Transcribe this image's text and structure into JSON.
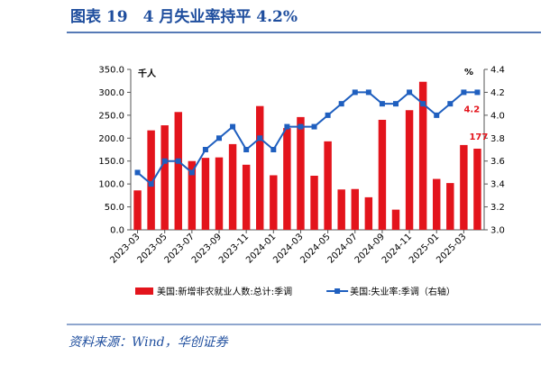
{
  "chart_data": {
    "type": "bar",
    "title": "图表 19　4 月失业率持平 4.2%",
    "source": "资料来源：Wind，华创证券",
    "ylabel": "千人",
    "y2label": "%",
    "categories": [
      "2023-03",
      null,
      "2023-05",
      null,
      "2023-07",
      null,
      "2023-09",
      null,
      "2023-11",
      null,
      "2024-01",
      null,
      "2024-03",
      null,
      "2024-05",
      null,
      "2024-07",
      null,
      "2024-09",
      null,
      "2024-11",
      null,
      "2025-01",
      null,
      "2025-03",
      null
    ],
    "series": [
      {
        "name": "美国:新增非农就业人数:总计:季调",
        "type": "bar",
        "color": "#e3141c",
        "values": [
          86,
          217,
          228,
          257,
          150,
          157,
          158,
          187,
          142,
          270,
          119,
          222,
          246,
          118,
          193,
          88,
          89,
          71,
          240,
          44,
          261,
          323,
          111,
          102,
          185,
          177
        ],
        "value_labels": [
          null,
          null,
          null,
          null,
          null,
          null,
          null,
          null,
          null,
          null,
          null,
          null,
          null,
          null,
          null,
          null,
          null,
          null,
          null,
          null,
          null,
          null,
          null,
          null,
          null,
          "177"
        ]
      },
      {
        "name": "美国:失业率:季调（右轴）",
        "type": "line",
        "axis": "y2",
        "color": "#1f5fbf",
        "values": [
          3.5,
          3.4,
          3.6,
          3.6,
          3.5,
          3.7,
          3.8,
          3.9,
          3.7,
          3.8,
          3.7,
          3.9,
          3.9,
          3.9,
          4.0,
          4.1,
          4.2,
          4.2,
          4.1,
          4.1,
          4.2,
          4.1,
          4.0,
          4.1,
          4.2,
          4.2
        ],
        "value_labels": [
          null,
          null,
          null,
          null,
          null,
          null,
          null,
          null,
          null,
          null,
          null,
          null,
          null,
          null,
          null,
          null,
          null,
          null,
          null,
          null,
          null,
          null,
          null,
          null,
          null,
          "4.2"
        ]
      }
    ],
    "ylim": [
      0,
      350
    ],
    "yticks": [
      {
        "value": 0,
        "label": "0.0"
      },
      {
        "value": 50,
        "label": "50.0"
      },
      {
        "value": 100,
        "label": "100.0"
      },
      {
        "value": 150,
        "label": "150.0"
      },
      {
        "value": 200,
        "label": "200.0"
      },
      {
        "value": 250,
        "label": "250.0"
      },
      {
        "value": 300,
        "label": "300.0"
      },
      {
        "value": 350,
        "label": "350.0"
      }
    ],
    "y2lim": [
      3.0,
      4.4
    ],
    "y2ticks": [
      {
        "value": 3,
        "label": "3.0"
      },
      3.2,
      3.4,
      3.6,
      3.8,
      {
        "value": 4,
        "label": "4.0"
      },
      4.2,
      4.4
    ],
    "grid": false
  }
}
